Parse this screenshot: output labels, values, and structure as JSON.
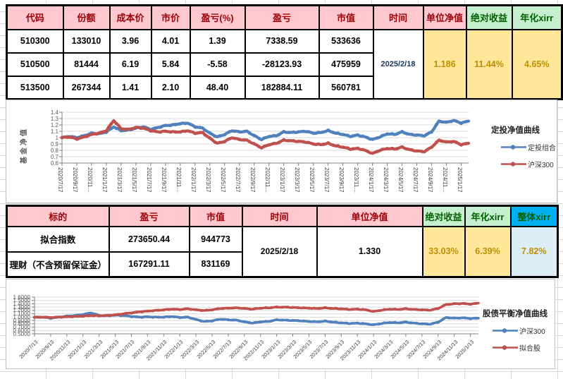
{
  "colors": {
    "header_pink_bg": "#FFC7CE",
    "header_pink_text": "#9C0006",
    "header_green_bg": "#C6EFCE",
    "header_green_text": "#006100",
    "header_blue_bg": "#00B0F0",
    "value_yellow_bg": "#FFE699",
    "value_gold_text": "#BF8F00",
    "value_blue_bg": "#DAEEF3",
    "date_text": "#17375E",
    "series_blue": "#4F81BD",
    "series_red": "#C0504D",
    "chart_gridline": "#D9D9D9",
    "axis_line": "#808080"
  },
  "table1": {
    "headers": [
      "代码",
      "份额",
      "成本价",
      "市价",
      "盈亏(%)",
      "盈亏",
      "市值",
      "时间",
      "单位净值",
      "绝对收益",
      "年化xirr"
    ],
    "header_styles": [
      "pink",
      "pink",
      "pink",
      "pink",
      "pink",
      "pink",
      "pink",
      "pink",
      "pink",
      "green",
      "green"
    ],
    "col_keys": [
      "code",
      "shares",
      "cost-price",
      "market-price",
      "pnl-pct",
      "pnl",
      "market-value",
      "time",
      "unit-nav",
      "abs-return",
      "annual-xirr"
    ],
    "rows": [
      [
        "510300",
        "133010",
        "3.96",
        "4.01",
        "1.39",
        "7338.59",
        "533636"
      ],
      [
        "510500",
        "81444",
        "6.19",
        "5.84",
        "-5.58",
        "-28123.93",
        "475959"
      ],
      [
        "513500",
        "267344",
        "1.41",
        "2.10",
        "48.40",
        "182884.11",
        "560781"
      ]
    ],
    "merged": {
      "time": "2025/2/18",
      "nav": "1.186",
      "abs_return": "11.44%",
      "annual_xirr": "4.65%"
    }
  },
  "table2": {
    "headers": [
      "标的",
      "盈亏",
      "市值",
      "时间",
      "单位净值",
      "绝对收益",
      "年化xirr",
      "整体xirr"
    ],
    "header_styles": [
      "pink",
      "pink",
      "pink",
      "pink",
      "pink",
      "green",
      "green",
      "blue"
    ],
    "col_keys": [
      "target",
      "pnl",
      "market-value",
      "time",
      "unit-nav",
      "abs-return",
      "annual-xirr",
      "overall-xirr"
    ],
    "rows": [
      [
        "拟合指数",
        "273650.44",
        "944773"
      ],
      [
        "理财（不含预留保证金）",
        "167291.11",
        "831169"
      ]
    ],
    "merged": {
      "time": "2025/2/18",
      "nav": "1.330",
      "abs_return": "33.03%",
      "annual_xirr": "6.39%",
      "overall_xirr": "7.82%"
    }
  },
  "chart_data": [
    {
      "type": "line",
      "title": "定投净值曲线",
      "ylabel": "基金净值",
      "ylim": [
        0.6,
        1.4
      ],
      "yticks": [
        "1.4",
        "1.3",
        "1.2",
        "1.1",
        "1",
        "0.9",
        "0.8",
        "0.7",
        "0.6"
      ],
      "grid": true,
      "legend_position": "right",
      "xticklabels": [
        "2020/7/17",
        "2020/9/17",
        "2020/11…",
        "2021/1/17",
        "2021/3/17",
        "2021/5/17",
        "2021/7/17",
        "2021/9/17",
        "2021/11…",
        "2022/1/17",
        "2022/3/17",
        "2022/5/17",
        "2022/7/17",
        "2022/9/17",
        "2022/11…",
        "2023/1/17",
        "2023/3/17",
        "2023/5/17",
        "2023/7/17",
        "2023/9/17",
        "2023/11…",
        "2024/1/17",
        "2024/3/17",
        "2024/5/17",
        "2024/7/17",
        "2024/9/17",
        "2024/11…",
        "2025/1/17"
      ],
      "series": [
        {
          "name": "定投组合",
          "color": "#4F81BD",
          "values": [
            1.0,
            1.02,
            1.0,
            1.03,
            1.07,
            1.06,
            1.09,
            1.17,
            1.11,
            1.12,
            1.15,
            1.17,
            1.13,
            1.16,
            1.19,
            1.2,
            1.22,
            1.23,
            1.17,
            1.15,
            1.07,
            1.01,
            1.05,
            1.11,
            1.09,
            1.1,
            1.03,
            0.97,
            1.02,
            1.03,
            1.09,
            1.08,
            1.09,
            1.1,
            1.07,
            1.08,
            1.11,
            1.07,
            1.05,
            1.02,
            1.04,
            1.01,
            0.97,
            1.01,
            1.06,
            1.05,
            1.09,
            1.05,
            1.04,
            1.03,
            1.09,
            1.26,
            1.24,
            1.27,
            1.23,
            1.26
          ]
        },
        {
          "name": "沪深300",
          "color": "#C0504D",
          "values": [
            1.0,
            1.01,
            0.98,
            1.01,
            1.05,
            1.07,
            1.11,
            1.27,
            1.14,
            1.13,
            1.16,
            1.15,
            1.11,
            1.09,
            1.1,
            1.09,
            1.09,
            1.11,
            1.07,
            1.08,
            0.99,
            0.91,
            0.94,
            1.0,
            0.97,
            0.96,
            0.9,
            0.84,
            0.89,
            0.91,
            0.96,
            0.95,
            0.94,
            0.93,
            0.9,
            0.89,
            0.91,
            0.87,
            0.85,
            0.82,
            0.83,
            0.8,
            0.75,
            0.8,
            0.83,
            0.82,
            0.85,
            0.81,
            0.79,
            0.78,
            0.85,
            0.96,
            0.93,
            0.94,
            0.89,
            0.91
          ]
        }
      ]
    },
    {
      "type": "line",
      "title": "股债平衡净值曲线",
      "ylabel": "",
      "ylim": [
        0.5,
        1.6
      ],
      "yticks": [
        "1.6000",
        "1.5000",
        "1.4000",
        "1.3000",
        "1.2000",
        "1.1000",
        "1.0000",
        "0.9000",
        "0.8000",
        "0.7000",
        "0.6000",
        "0.5000"
      ],
      "grid": true,
      "legend_position": "right",
      "xticklabels": [
        "2020/7/13",
        "2020/9/13",
        "2020/11/13",
        "2021/1/13",
        "2021/3/13",
        "2021/5/13",
        "2021/7/13",
        "2021/9/13",
        "2021/11/13",
        "2022/1/13",
        "2022/3/13",
        "2022/5/13",
        "2022/7/13",
        "2022/9/13",
        "2022/11/13",
        "2023/1/13",
        "2023/3/13",
        "2023/5/13",
        "2023/7/13",
        "2023/9/13",
        "2023/11/13",
        "2024/1/13",
        "2024/3/13",
        "2024/5/13",
        "2024/7/13",
        "2024/9/13",
        "2024/11/13",
        "2025/1/13"
      ],
      "series": [
        {
          "name": "沪深300",
          "color": "#4F81BD",
          "values": [
            0.99,
            1.0,
            0.97,
            1.0,
            1.03,
            1.05,
            1.08,
            1.13,
            1.05,
            1.04,
            1.06,
            1.05,
            1.02,
            1.0,
            1.01,
            1.0,
            1.0,
            1.02,
            0.99,
            1.0,
            0.93,
            0.87,
            0.89,
            0.94,
            0.92,
            0.91,
            0.86,
            0.82,
            0.86,
            0.87,
            0.92,
            0.91,
            0.9,
            0.89,
            0.87,
            0.86,
            0.88,
            0.85,
            0.83,
            0.81,
            0.82,
            0.8,
            0.77,
            0.81,
            0.84,
            0.83,
            0.85,
            0.82,
            0.8,
            0.79,
            0.85,
            0.99,
            0.97,
            0.98,
            0.96,
            0.97
          ]
        },
        {
          "name": "拟合股",
          "color": "#C0504D",
          "values": [
            1.0,
            1.0,
            0.99,
            1.0,
            1.01,
            1.02,
            1.03,
            1.05,
            1.04,
            1.05,
            1.07,
            1.1,
            1.13,
            1.16,
            1.18,
            1.2,
            1.22,
            1.24,
            1.23,
            1.25,
            1.22,
            1.2,
            1.22,
            1.26,
            1.27,
            1.28,
            1.26,
            1.24,
            1.27,
            1.28,
            1.3,
            1.3,
            1.29,
            1.28,
            1.27,
            1.26,
            1.28,
            1.26,
            1.25,
            1.23,
            1.24,
            1.22,
            1.17,
            1.21,
            1.24,
            1.23,
            1.25,
            1.23,
            1.22,
            1.21,
            1.26,
            1.38,
            1.4,
            1.41,
            1.39,
            1.42
          ]
        }
      ]
    }
  ]
}
